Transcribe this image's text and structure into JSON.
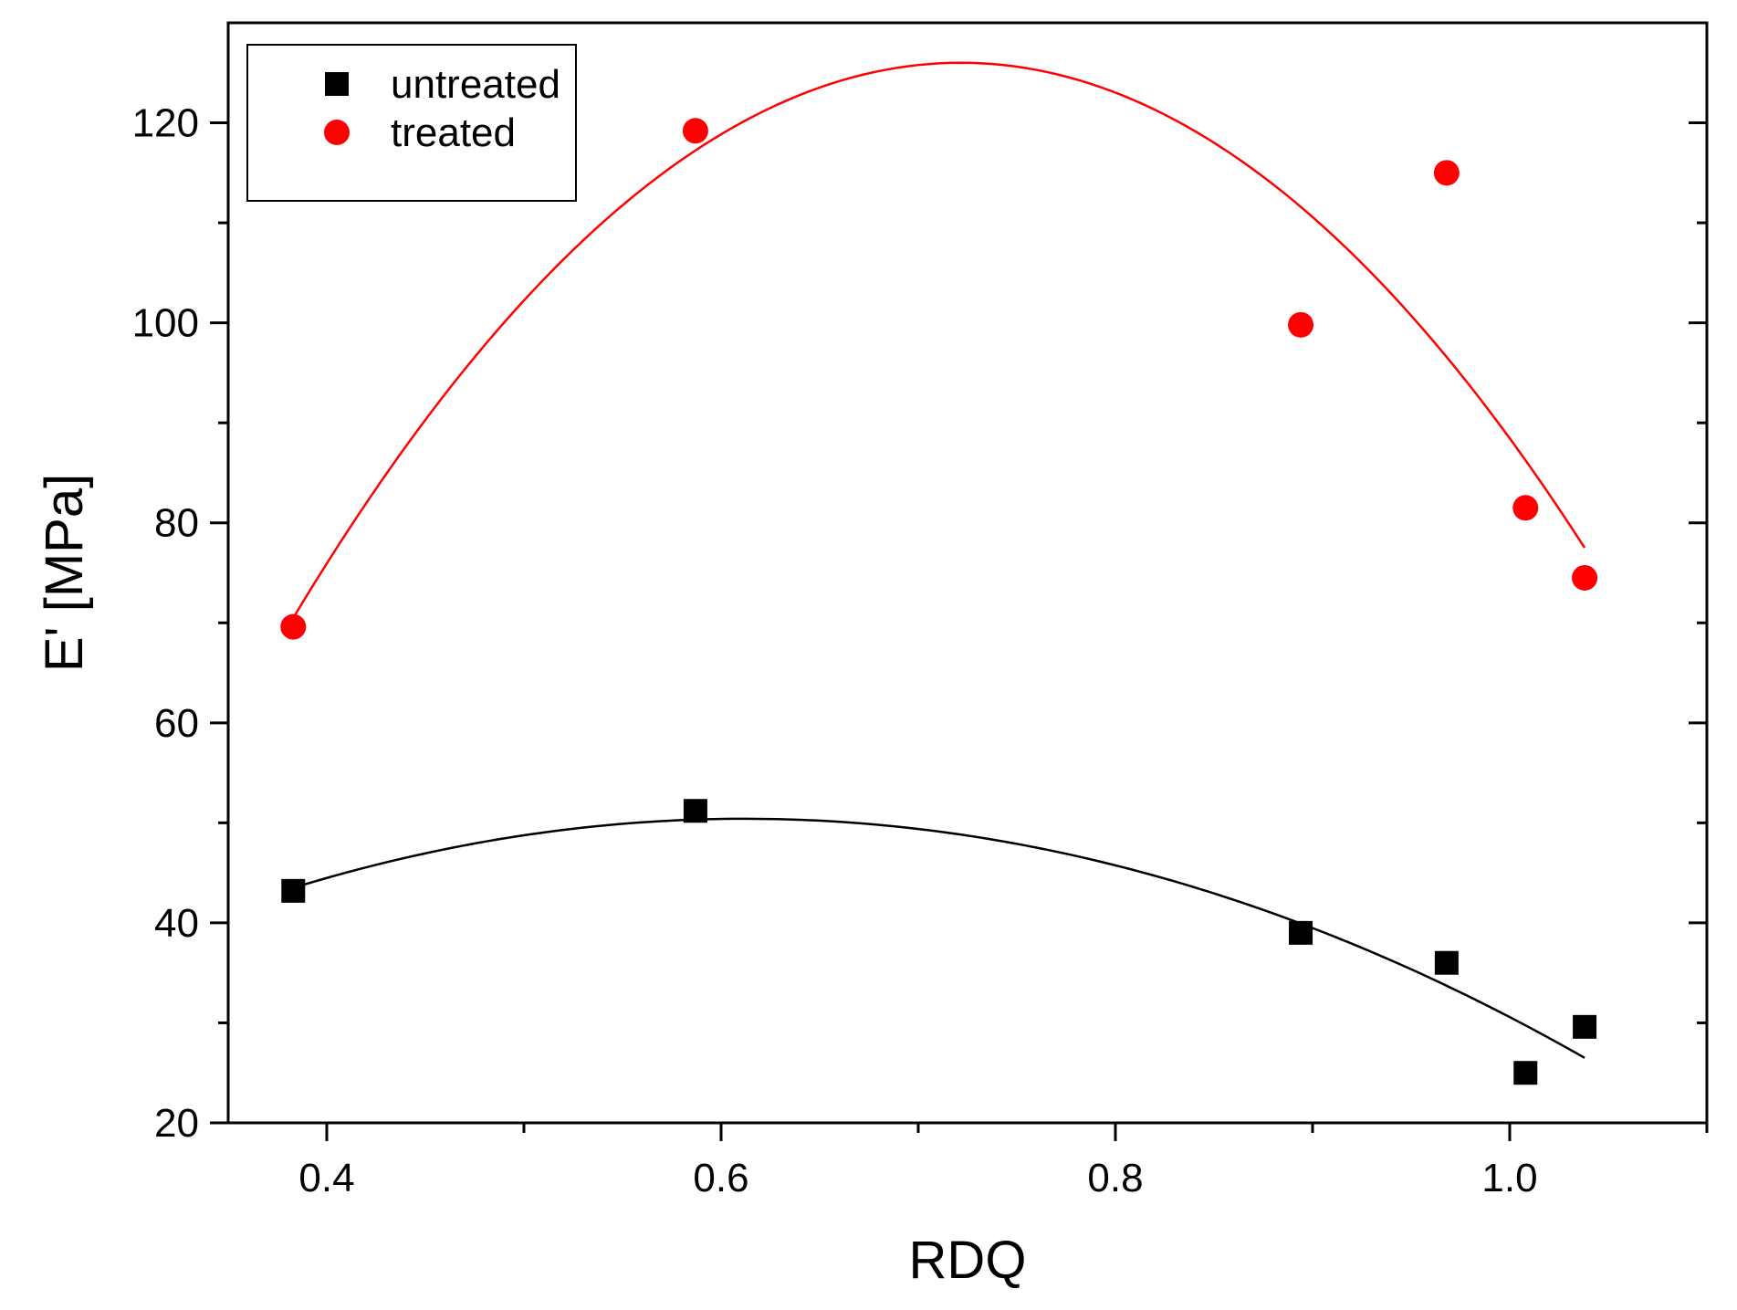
{
  "chart_data": {
    "type": "scatter",
    "xlabel": "RDQ",
    "ylabel": "E' [MPa]",
    "xlim": [
      0.35,
      1.1
    ],
    "ylim": [
      20,
      130
    ],
    "xticks": [
      0.4,
      0.6,
      0.8,
      1.0
    ],
    "xtick_labels": [
      "0.4",
      "0.6",
      "0.8",
      "1.0"
    ],
    "x_minor_ticks": [
      0.5,
      0.7,
      0.9,
      1.1
    ],
    "yticks": [
      20,
      40,
      60,
      80,
      100,
      120
    ],
    "ytick_labels": [
      "20",
      "40",
      "60",
      "80",
      "100",
      "120"
    ],
    "y_minor_ticks": [
      30,
      50,
      70,
      90,
      110
    ],
    "grid": false,
    "legend_position": "top-left",
    "series": [
      {
        "name": "untreated",
        "marker": "square",
        "color": "#000000",
        "x": [
          0.383,
          0.587,
          0.894,
          0.968,
          1.008,
          1.038
        ],
        "y": [
          43.2,
          51.2,
          39.0,
          36.0,
          25.0,
          29.6
        ],
        "fit": {
          "type": "quadratic",
          "x_range": [
            0.383,
            1.038
          ],
          "points": [
            [
              0.383,
              43.5
            ],
            [
              0.62,
              50.4
            ],
            [
              1.038,
              26.5
            ]
          ]
        }
      },
      {
        "name": "treated",
        "marker": "circle",
        "color": "#ff0000",
        "x": [
          0.383,
          0.587,
          0.894,
          0.968,
          1.008,
          1.038
        ],
        "y": [
          69.6,
          119.2,
          99.8,
          115.0,
          81.5,
          74.5
        ],
        "fit": {
          "type": "quadratic",
          "x_range": [
            0.383,
            1.038
          ],
          "points": [
            [
              0.383,
              70.5
            ],
            [
              0.725,
              126.0
            ],
            [
              1.038,
              77.5
            ]
          ]
        }
      }
    ]
  }
}
